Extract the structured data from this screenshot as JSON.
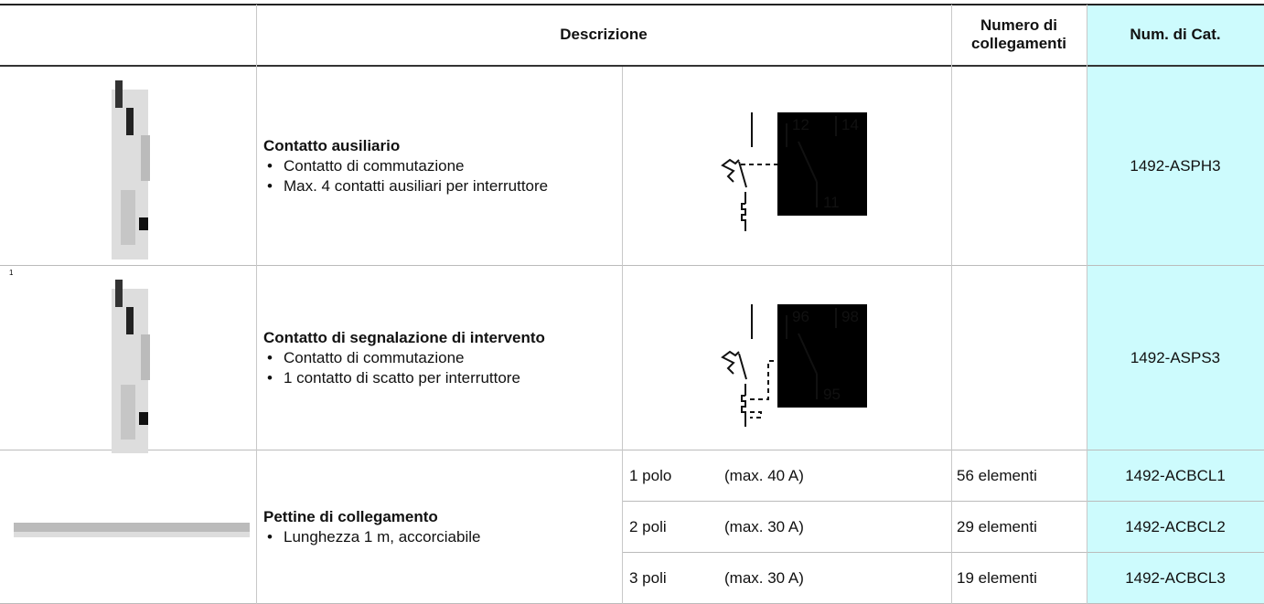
{
  "header": {
    "description": "Descrizione",
    "connections": "Numero di collegamenti",
    "catalog": "Num. di Cat."
  },
  "rows": [
    {
      "title": "Contatto ausiliario",
      "bullets": [
        "Contatto di commutazione",
        "Max. 4 contatti ausiliari per interruttore"
      ],
      "diagram_labels": [
        "12",
        "14",
        "11"
      ],
      "catalog": "1492-ASPH3"
    },
    {
      "marker": "1",
      "title": "Contatto di segnalazione di intervento",
      "bullets": [
        "Contatto di commutazione",
        "1 contatto di scatto per interruttore"
      ],
      "diagram_labels": [
        "96",
        "98",
        "95"
      ],
      "catalog": "1492-ASPS3"
    },
    {
      "title": "Pettine di collegamento",
      "bullets": [
        "Lunghezza 1 m, accorciabile"
      ],
      "variants": [
        {
          "poles": "1 polo",
          "max": "(max. 40 A)",
          "connections": "56 elementi",
          "catalog": "1492-ACBCL1"
        },
        {
          "poles": "2 poli",
          "max": "(max. 30 A)",
          "connections": "29 elementi",
          "catalog": "1492-ACBCL2"
        },
        {
          "poles": "3 poli",
          "max": "(max. 30 A)",
          "connections": "19 elementi",
          "catalog": "1492-ACBCL3"
        }
      ]
    }
  ]
}
